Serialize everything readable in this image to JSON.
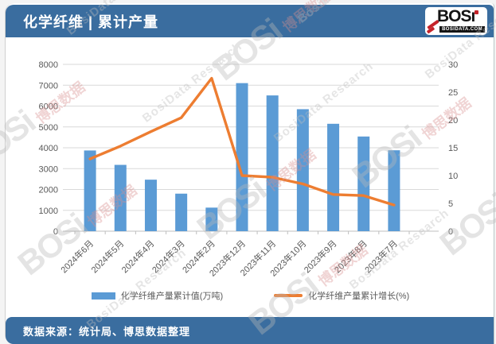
{
  "header": {
    "title": "化学纤维 | 累计产量"
  },
  "logo": {
    "text": "BOSı",
    "domain": "BOSIDATA.COM"
  },
  "chart_data": {
    "type": "combo",
    "categories": [
      "2024年6月",
      "2024年5月",
      "2024年4月",
      "2024年3月",
      "2024年2月",
      "2023年12月",
      "2023年11月",
      "2023年10月",
      "2023年9月",
      "2023年8月",
      "2023年7月"
    ],
    "series": [
      {
        "name": "化学纤维产量累计值(万吨)",
        "type": "bar",
        "axis": "left",
        "color": "#5B9BD5",
        "values": [
          3870,
          3180,
          2470,
          1800,
          1130,
          7100,
          6510,
          5850,
          5150,
          4540,
          3880
        ]
      },
      {
        "name": "化学纤维产量累计增长(%)",
        "type": "line",
        "axis": "right",
        "color": "#ED7D31",
        "values": [
          13.0,
          15.3,
          17.9,
          20.4,
          27.5,
          10.0,
          9.7,
          8.5,
          6.6,
          6.4,
          4.7
        ]
      }
    ],
    "title": "化学纤维 | 累计产量",
    "xlabel": "",
    "ylabel_left": "万吨",
    "ylabel_right": "%",
    "left_axis": {
      "min": 0,
      "max": 8000,
      "step": 1000
    },
    "right_axis": {
      "min": 0,
      "max": 30,
      "step": 5
    },
    "grid": true,
    "legend_position": "bottom"
  },
  "footer": {
    "source": "数据来源：统计局、博思数据整理"
  },
  "watermark": {
    "brand": "BOSi",
    "cn": "博思数据",
    "en": "BosiData Research"
  },
  "colors": {
    "band_blue": "#3A6D9F",
    "bar_blue": "#5B9BD5",
    "line_orange": "#ED7D31",
    "grid_gray": "#D9D9D9",
    "axis_gray": "#BFBFBF",
    "text_gray": "#595959"
  }
}
